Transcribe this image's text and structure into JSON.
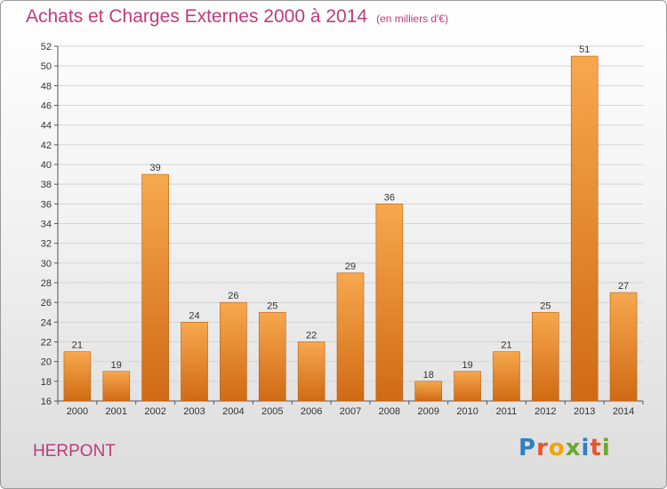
{
  "header": {
    "title": "Achats et Charges Externes 2000 à 2014",
    "unit": "(en milliers d'€)"
  },
  "commune": "HERPONT",
  "logo": {
    "text": "Proxiti",
    "letter_colors": [
      "#2f7fc4",
      "#e8552a",
      "#f2a300",
      "#6aaa2a",
      "#2f7fc4",
      "#e8552a",
      "#6aaa2a"
    ]
  },
  "colors": {
    "title": "#c03a7a",
    "bar_top": "#f7a84e",
    "bar_bottom": "#d06a14",
    "bar_stroke": "#b8600f"
  },
  "chart_data": {
    "type": "bar",
    "title": "Achats et Charges Externes 2000 à 2014",
    "subtitle": "(en milliers d'€)",
    "categories": [
      "2000",
      "2001",
      "2002",
      "2003",
      "2004",
      "2005",
      "2006",
      "2007",
      "2008",
      "2009",
      "2010",
      "2011",
      "2012",
      "2013",
      "2014"
    ],
    "values": [
      21,
      19,
      39,
      24,
      26,
      25,
      22,
      29,
      36,
      18,
      19,
      21,
      25,
      51,
      27
    ],
    "ylim": [
      16,
      52
    ],
    "yticks": [
      16,
      18,
      20,
      22,
      24,
      26,
      28,
      30,
      32,
      34,
      36,
      38,
      40,
      42,
      44,
      46,
      48,
      50,
      52
    ],
    "grid": true
  }
}
